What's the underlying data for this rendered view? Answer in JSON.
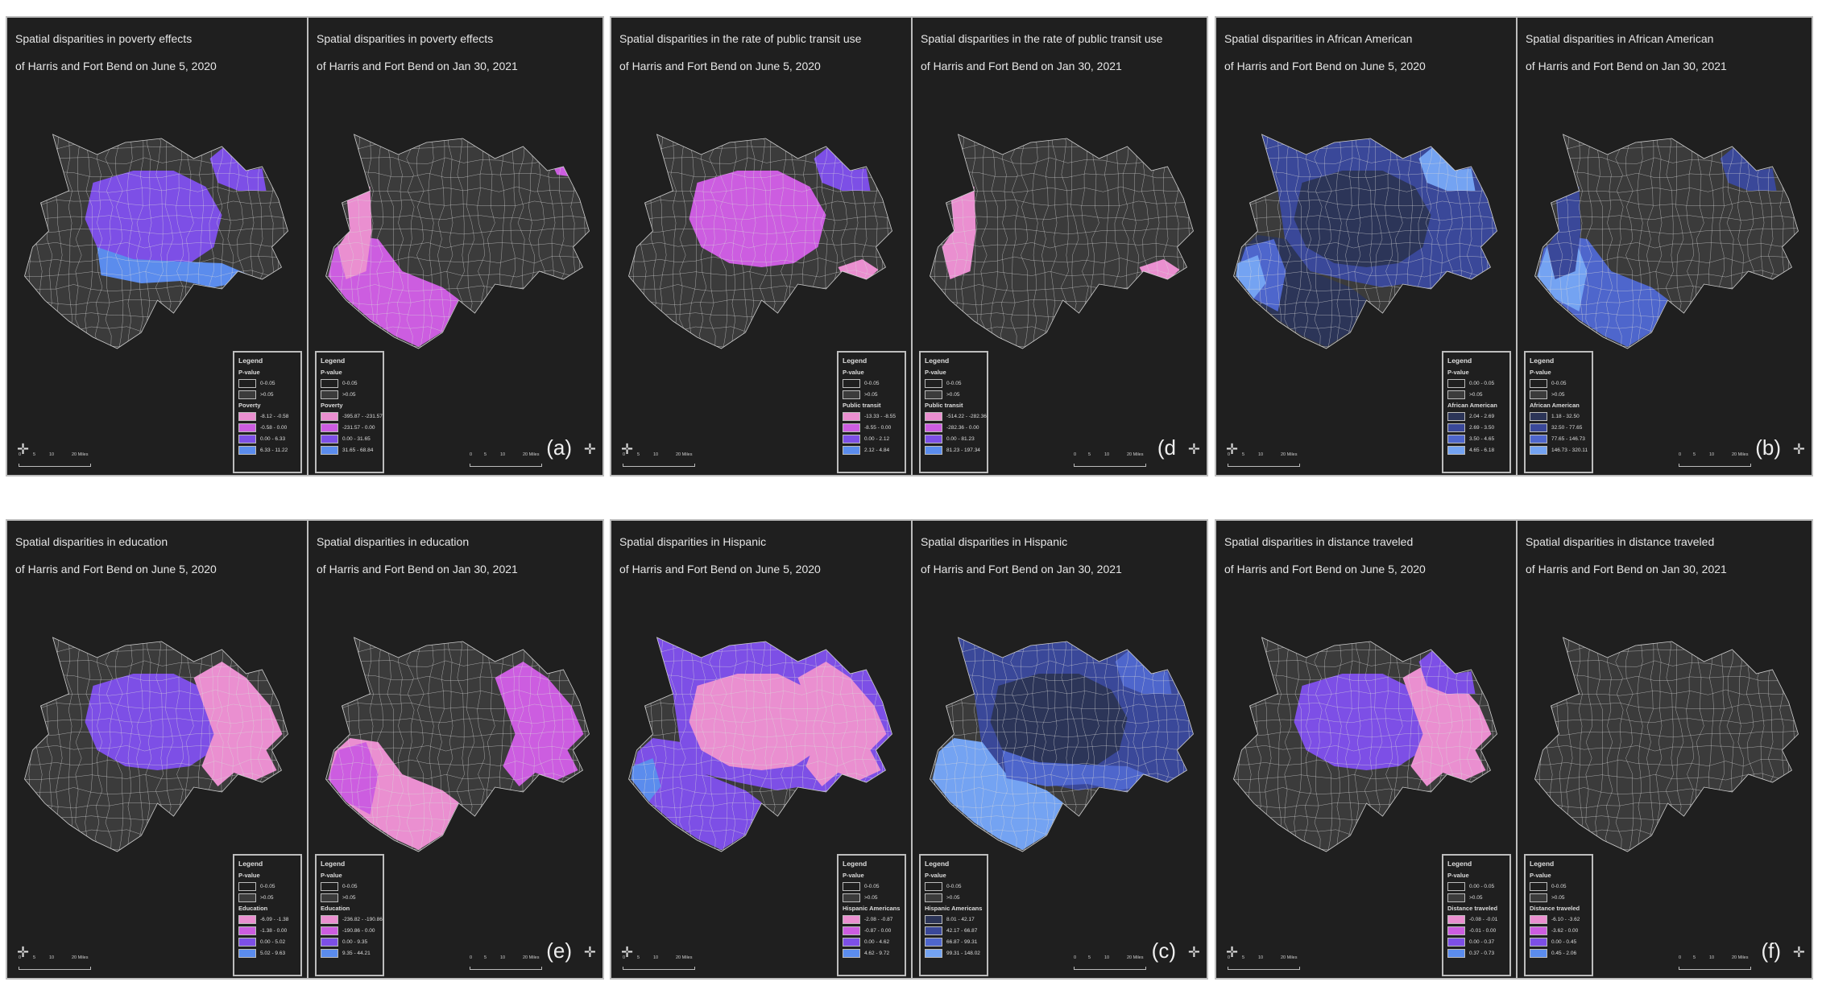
{
  "colors": {
    "background": "#1f1f1f",
    "tract_fill": "#3b3b3b",
    "tract_line": "#d9d9d9",
    "pink": "#ea8fd0",
    "magenta": "#cc5de0",
    "purple": "#7d4fe6",
    "blue": "#5b8ced",
    "navy1": "#2c3558",
    "navy2": "#3a4899",
    "navy3": "#4e66cc",
    "navy4": "#74a3f2"
  },
  "scale_bar": {
    "ticks": [
      "0",
      "5",
      "10",
      "20 Miles"
    ]
  },
  "north_arrow": "north-arrow-icon",
  "groups": [
    {
      "label": "(a)",
      "panels": [
        {
          "title_line1": "Spatial disparities in poverty effects",
          "title_line2": "of Harris and Fort Bend on June 5, 2020",
          "regions": [
            [
              "harris_core",
              "purple"
            ],
            [
              "south_band",
              "blue"
            ],
            [
              "ne_patch",
              "purple"
            ]
          ],
          "legend": {
            "title": "Legend",
            "pvalue_label": "P-value",
            "pvalue_rows": [
              "0-0.05",
              ">0.05"
            ],
            "variable": "Poverty",
            "classes": [
              {
                "range": "-8.12 - -0.58",
                "color": "pink"
              },
              {
                "range": "-0.58 - 0.00",
                "color": "magenta"
              },
              {
                "range": "0.00 - 6.33",
                "color": "purple"
              },
              {
                "range": "6.33 - 11.22",
                "color": "blue"
              }
            ]
          }
        },
        {
          "title_line1": "Spatial disparities in poverty effects",
          "title_line2": "of Harris and Fort Bend on Jan 30, 2021",
          "regions": [
            [
              "fortbend",
              "magenta"
            ],
            [
              "west_strip",
              "pink"
            ],
            [
              "ne_tip",
              "magenta"
            ]
          ],
          "legend": {
            "title": "Legend",
            "pvalue_label": "P-value",
            "pvalue_rows": [
              "0-0.05",
              ">0.05"
            ],
            "variable": "Poverty",
            "classes": [
              {
                "range": "-395.87 - -231.57",
                "color": "pink"
              },
              {
                "range": "-231.57 - 0.00",
                "color": "magenta"
              },
              {
                "range": "0.00 - 31.65",
                "color": "purple"
              },
              {
                "range": "31.65 - 68.84",
                "color": "blue"
              }
            ]
          }
        }
      ]
    },
    {
      "label": "(d",
      "panels": [
        {
          "title_line1": "Spatial disparities in the rate of public transit use",
          "title_line2": "of Harris and Fort Bend on June 5, 2020",
          "regions": [
            [
              "harris_core",
              "magenta"
            ],
            [
              "se_patch",
              "pink"
            ],
            [
              "ne_patch",
              "purple"
            ]
          ],
          "legend": {
            "title": "Legend",
            "pvalue_label": "P-value",
            "pvalue_rows": [
              "0-0.05",
              ">0.05"
            ],
            "variable": "Public transit",
            "classes": [
              {
                "range": "-13.33 - -8.55",
                "color": "pink"
              },
              {
                "range": "-8.55 - 0.00",
                "color": "magenta"
              },
              {
                "range": "0.00 - 2.12",
                "color": "purple"
              },
              {
                "range": "2.12 - 4.84",
                "color": "blue"
              }
            ]
          }
        },
        {
          "title_line1": "Spatial disparities in the rate of public transit use",
          "title_line2": "of Harris and Fort Bend on Jan 30, 2021",
          "regions": [
            [
              "west_strip",
              "pink"
            ],
            [
              "se_patch",
              "pink"
            ]
          ],
          "legend": {
            "title": "Legend",
            "pvalue_label": "P-value",
            "pvalue_rows": [
              "0-0.05",
              ">0.05"
            ],
            "variable": "Public transit",
            "classes": [
              {
                "range": "-514.22 - -282.36",
                "color": "pink"
              },
              {
                "range": "-282.36 - 0.00",
                "color": "magenta"
              },
              {
                "range": "0.00 - 81.23",
                "color": "purple"
              },
              {
                "range": "81.23 - 197.34",
                "color": "blue"
              }
            ]
          }
        }
      ]
    },
    {
      "label": "(b)",
      "panels": [
        {
          "title_line1": "Spatial disparities in African American",
          "title_line2": "of Harris and Fort Bend on June 5, 2020",
          "regions": [
            [
              "harris_all",
              "navy2"
            ],
            [
              "harris_core",
              "navy1"
            ],
            [
              "ne_patch",
              "navy4"
            ],
            [
              "fortbend",
              "navy1"
            ],
            [
              "fb_west",
              "navy3"
            ],
            [
              "west_tip",
              "navy4"
            ]
          ],
          "legend": {
            "title": "Legend",
            "pvalue_label": "P-value",
            "pvalue_rows": [
              "0.00 - 0.05",
              ">0.05"
            ],
            "variable": "African American",
            "classes": [
              {
                "range": "2.04 - 2.69",
                "color": "navy1"
              },
              {
                "range": "2.69 - 3.50",
                "color": "navy2"
              },
              {
                "range": "3.50 - 4.65",
                "color": "navy3"
              },
              {
                "range": "4.65 - 6.18",
                "color": "navy4"
              }
            ]
          }
        },
        {
          "title_line1": "Spatial disparities in African American",
          "title_line2": "of Harris and Fort Bend on Jan 30, 2021",
          "regions": [
            [
              "fortbend",
              "navy3"
            ],
            [
              "fb_west",
              "navy4"
            ],
            [
              "ne_patch",
              "navy2"
            ],
            [
              "west_strip",
              "navy2"
            ]
          ],
          "legend": {
            "title": "Legend",
            "pvalue_label": "P-value",
            "pvalue_rows": [
              "0-0.05",
              ">0.05"
            ],
            "variable": "African American",
            "classes": [
              {
                "range": "1.18 - 32.50",
                "color": "navy1"
              },
              {
                "range": "32.50 - 77.65",
                "color": "navy2"
              },
              {
                "range": "77.65 - 146.73",
                "color": "navy3"
              },
              {
                "range": "146.73 - 320.11",
                "color": "navy4"
              }
            ]
          }
        }
      ]
    },
    {
      "label": "(e)",
      "panels": [
        {
          "title_line1": "Spatial disparities in education",
          "title_line2": "of Harris and Fort Bend on June 5, 2020",
          "regions": [
            [
              "harris_core",
              "purple"
            ],
            [
              "harris_east",
              "pink"
            ]
          ],
          "legend": {
            "title": "Legend",
            "pvalue_label": "P-value",
            "pvalue_rows": [
              "0-0.05",
              ">0.05"
            ],
            "variable": "Education",
            "classes": [
              {
                "range": "-6.09 - -1.38",
                "color": "pink"
              },
              {
                "range": "-1.38 - 0.00",
                "color": "magenta"
              },
              {
                "range": "0.00 - 5.02",
                "color": "purple"
              },
              {
                "range": "5.02 - 9.63",
                "color": "blue"
              }
            ]
          }
        },
        {
          "title_line1": "Spatial disparities in education",
          "title_line2": "of Harris and Fort Bend on Jan 30, 2021",
          "regions": [
            [
              "fortbend",
              "pink"
            ],
            [
              "fb_west",
              "magenta"
            ],
            [
              "harris_east",
              "magenta"
            ]
          ],
          "legend": {
            "title": "Legend",
            "pvalue_label": "P-value",
            "pvalue_rows": [
              "0-0.05",
              ">0.05"
            ],
            "variable": "Education",
            "classes": [
              {
                "range": "-236.82 - -190.86",
                "color": "pink"
              },
              {
                "range": "-190.86 - 0.00",
                "color": "magenta"
              },
              {
                "range": "0.00 - 9.35",
                "color": "purple"
              },
              {
                "range": "9.35 - 44.21",
                "color": "blue"
              }
            ]
          }
        }
      ]
    },
    {
      "label": "(c)",
      "panels": [
        {
          "title_line1": "Spatial disparities in Hispanic",
          "title_line2": "of Harris and Fort Bend on June 5, 2020",
          "regions": [
            [
              "harris_all",
              "purple"
            ],
            [
              "harris_core",
              "pink"
            ],
            [
              "harris_east",
              "pink"
            ],
            [
              "fortbend",
              "purple"
            ],
            [
              "west_tip",
              "blue"
            ]
          ],
          "legend": {
            "title": "Legend",
            "pvalue_label": "P-value",
            "pvalue_rows": [
              "0-0.05",
              ">0.05"
            ],
            "variable": "Hispanic Americans",
            "classes": [
              {
                "range": "-2.08 - -0.87",
                "color": "pink"
              },
              {
                "range": "-0.87 - 0.00",
                "color": "magenta"
              },
              {
                "range": "0.00 - 4.62",
                "color": "purple"
              },
              {
                "range": "4.62 - 9.72",
                "color": "blue"
              }
            ]
          }
        },
        {
          "title_line1": "Spatial disparities in Hispanic",
          "title_line2": "of Harris and Fort Bend on Jan 30, 2021",
          "regions": [
            [
              "harris_all",
              "navy2"
            ],
            [
              "harris_core",
              "navy1"
            ],
            [
              "fortbend",
              "navy4"
            ],
            [
              "south_band",
              "navy3"
            ],
            [
              "ne_patch",
              "navy3"
            ]
          ],
          "legend": {
            "title": "Legend",
            "pvalue_label": "P-value",
            "pvalue_rows": [
              "0-0.05",
              ">0.05"
            ],
            "variable": "Hispanic Americans",
            "classes": [
              {
                "range": "8.01 - 42.17",
                "color": "navy1"
              },
              {
                "range": "42.17 - 66.87",
                "color": "navy2"
              },
              {
                "range": "66.87 - 99.31",
                "color": "navy3"
              },
              {
                "range": "99.31 - 148.02",
                "color": "navy4"
              }
            ]
          }
        }
      ]
    },
    {
      "label": "(f)",
      "panels": [
        {
          "title_line1": "Spatial disparities in distance traveled",
          "title_line2": "of Harris and Fort Bend on June 5, 2020",
          "regions": [
            [
              "harris_core",
              "purple"
            ],
            [
              "harris_east",
              "pink"
            ],
            [
              "ne_patch",
              "purple"
            ]
          ],
          "legend": {
            "title": "Legend",
            "pvalue_label": "P-value",
            "pvalue_rows": [
              "0.00 - 0.05",
              ">0.05"
            ],
            "variable": "Distance traveled",
            "classes": [
              {
                "range": "-0.08 - -0.01",
                "color": "pink"
              },
              {
                "range": "-0.01 - 0.00",
                "color": "magenta"
              },
              {
                "range": "0.00 - 0.37",
                "color": "purple"
              },
              {
                "range": "0.37 - 0.73",
                "color": "blue"
              }
            ]
          }
        },
        {
          "title_line1": "Spatial disparities in distance traveled",
          "title_line2": "of Harris and Fort Bend on Jan 30, 2021",
          "regions": [],
          "legend": {
            "title": "Legend",
            "pvalue_label": "P-value",
            "pvalue_rows": [
              "0-0.05",
              ">0.05"
            ],
            "variable": "Distance traveled",
            "classes": [
              {
                "range": "-6.10 - -3.62",
                "color": "pink"
              },
              {
                "range": "-3.62 - 0.00",
                "color": "magenta"
              },
              {
                "range": "0.00 - 0.45",
                "color": "purple"
              },
              {
                "range": "0.45 - 2.06",
                "color": "blue"
              }
            ]
          }
        }
      ]
    }
  ]
}
